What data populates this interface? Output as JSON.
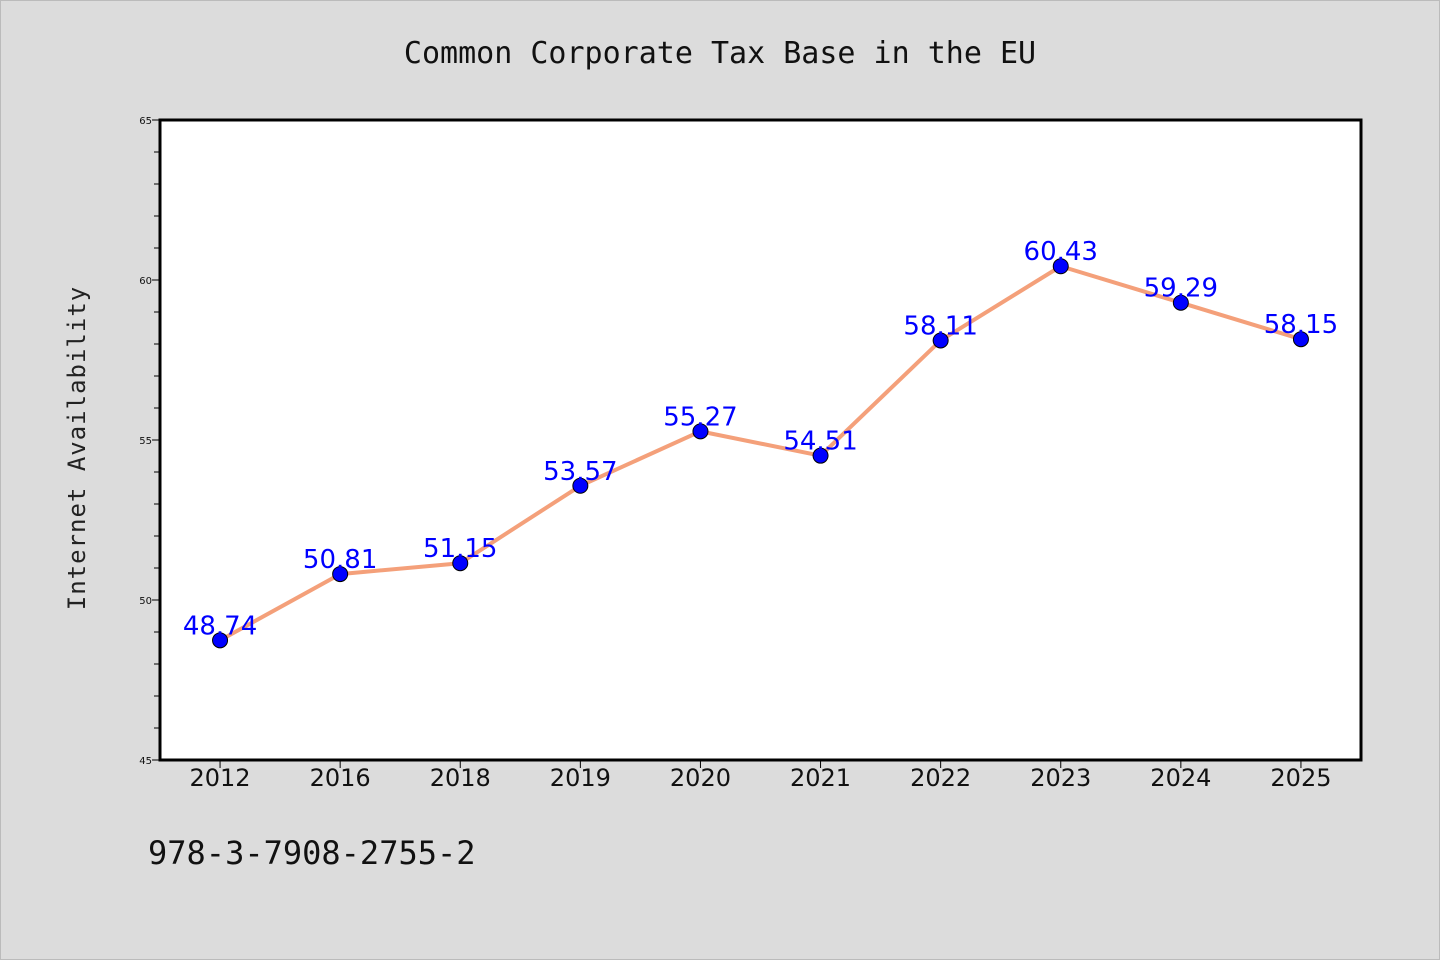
{
  "chart_data": {
    "type": "line",
    "title": "Common Corporate Tax Base in the EU",
    "xlabel": "",
    "ylabel": "Internet Availability",
    "categories": [
      "2012",
      "2016",
      "2018",
      "2019",
      "2020",
      "2021",
      "2022",
      "2023",
      "2024",
      "2025"
    ],
    "series": [
      {
        "values": [
          48.74,
          50.81,
          51.15,
          53.57,
          55.27,
          54.51,
          58.11,
          60.43,
          59.29,
          58.15
        ],
        "data_labels": [
          "48.74",
          "50.81",
          "51.15",
          "53.57",
          "55.27",
          "54.51",
          "58.11",
          "60.43",
          "59.29",
          "58.15"
        ],
        "line_color": "#f4a07a",
        "marker_color": "#0000ff"
      }
    ],
    "ylim": [
      45,
      65
    ],
    "y_ticks": [
      "45",
      "50",
      "55",
      "60",
      "65"
    ],
    "grid": false,
    "label_color": "#0000ff",
    "background_color": "#dcdcdc",
    "plot_background_color": "#ffffff"
  },
  "footer": {
    "identifier": "978-3-7908-2755-2"
  }
}
